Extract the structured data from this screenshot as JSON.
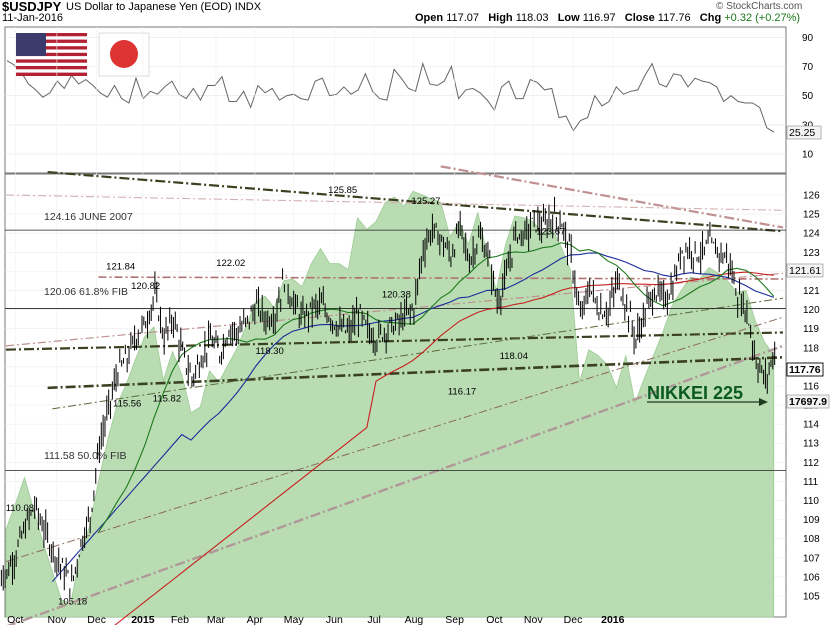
{
  "header": {
    "symbol": "$USDJPY",
    "description": "US Dollar to Japanese Yen (EOD)",
    "exchange": "INDX",
    "date": "11-Jan-2016",
    "open_label": "Open",
    "open": "117.07",
    "high_label": "High",
    "high": "118.03",
    "low_label": "Low",
    "low": "116.97",
    "close_label": "Close",
    "close": "117.76",
    "chg_label": "Chg",
    "chg": "+0.32 (+0.27%)",
    "watermark": "© StockCharts.com"
  },
  "colors": {
    "price": "#000000",
    "nikkei_fill": "#b9dcb3",
    "nikkei_line": "#9ccc94",
    "ma_green": "#1d7a1d",
    "ma_blue": "#1a2a9a",
    "ma_red": "#c81e1e",
    "trend_dark": "#3a4020",
    "trend_pink": "#c09090",
    "rsi_line": "#666666"
  },
  "chart_data": [
    {
      "type": "line",
      "name": "rsi-indicator",
      "ylim": [
        0,
        100
      ],
      "yticks": [
        10,
        30,
        50,
        70,
        90
      ],
      "last_value": "25.25",
      "values": [
        74,
        71,
        66,
        58,
        54,
        49,
        52,
        60,
        55,
        64,
        58,
        61,
        57,
        52,
        49,
        57,
        48,
        45,
        62,
        48,
        53,
        51,
        56,
        60,
        51,
        48,
        55,
        47,
        57,
        57,
        63,
        46,
        46,
        53,
        42,
        57,
        52,
        55,
        47,
        50,
        51,
        48,
        47,
        60,
        62,
        50,
        51,
        56,
        51,
        54,
        65,
        53,
        48,
        47,
        68,
        62,
        55,
        53,
        72,
        58,
        57,
        60,
        70,
        48,
        54,
        55,
        52,
        47,
        40,
        56,
        60,
        48,
        48,
        61,
        59,
        54,
        55,
        35,
        36,
        26,
        33,
        35,
        50,
        43,
        46,
        56,
        51,
        53,
        54,
        64,
        72,
        58,
        56,
        65,
        64,
        56,
        62,
        60,
        59,
        56,
        46,
        50,
        46,
        45,
        45,
        42,
        28,
        25
      ]
    },
    {
      "type": "line",
      "name": "price",
      "ylim": [
        104.5,
        127
      ],
      "yticks": [
        105,
        106,
        107,
        108,
        109,
        110,
        111,
        112,
        113,
        114,
        115,
        116,
        117,
        118,
        119,
        120,
        121,
        122,
        123,
        124,
        125,
        126
      ],
      "x_labels": [
        "Oct",
        "Nov",
        "Dec",
        "2015",
        "Feb",
        "Mar",
        "Apr",
        "May",
        "Jun",
        "Jul",
        "Aug",
        "Sep",
        "Oct",
        "Nov",
        "Dec",
        "2016"
      ],
      "x_label_weeks": [
        1,
        5.5,
        9.8,
        14.8,
        18.8,
        22.7,
        26.9,
        31.1,
        35.5,
        39.8,
        44.1,
        48.5,
        52.8,
        57,
        61.3,
        65.6
      ],
      "close": [
        106.2,
        107.3,
        108.6,
        109.7,
        108.5,
        107.4,
        106.4,
        105.6,
        107.8,
        109.2,
        112.9,
        114.8,
        116.8,
        117.4,
        118.7,
        119.3,
        120.8,
        118.5,
        119.6,
        117.6,
        116.4,
        117.5,
        118.4,
        117.7,
        119.0,
        118.8,
        119.4,
        120.2,
        119.5,
        119.8,
        121.6,
        120.3,
        119.5,
        120.1,
        120.2,
        119.6,
        119.0,
        118.8,
        119.8,
        118.9,
        118.5,
        119.0,
        119.2,
        119.6,
        120.1,
        123.2,
        124.2,
        123.6,
        122.8,
        124.3,
        122.5,
        123.8,
        122.9,
        120.4,
        121.7,
        124.0,
        123.9,
        124.6,
        124.3,
        124.9,
        124.5,
        122.8,
        119.5,
        121.2,
        120.0,
        119.9,
        121.5,
        120.2,
        118.4,
        119.9,
        121.0,
        120.5,
        121.2,
        123.2,
        123.1,
        122.9,
        123.4,
        123.0,
        122.6,
        120.7,
        119.9,
        117.3,
        116.3,
        117.8
      ],
      "high_low_note": "weekly closes estimated; daily bars drawn from these",
      "labels": [
        {
          "text": "110.08",
          "x": 1.5,
          "y": 110.08
        },
        {
          "text": "105.18",
          "x": 7.2,
          "y": 105.18
        },
        {
          "text": "121.84",
          "x": 12.4,
          "y": 121.84
        },
        {
          "text": "120.82",
          "x": 15.1,
          "y": 120.82
        },
        {
          "text": "115.56",
          "x": 13.1,
          "y": 115.56
        },
        {
          "text": "115.82",
          "x": 17.4,
          "y": 115.82
        },
        {
          "text": "122.02",
          "x": 24.3,
          "y": 122.02
        },
        {
          "text": "118.30",
          "x": 28.5,
          "y": 118.3
        },
        {
          "text": "125.85",
          "x": 36.4,
          "y": 125.85
        },
        {
          "text": "120.38",
          "x": 42.2,
          "y": 120.38
        },
        {
          "text": "125.27",
          "x": 45.4,
          "y": 125.27
        },
        {
          "text": "116.17",
          "x": 49.3,
          "y": 116.17
        },
        {
          "text": "118.04",
          "x": 54.9,
          "y": 118.04
        },
        {
          "text": "123.67",
          "x": 58.9,
          "y": 123.67
        }
      ]
    },
    {
      "type": "area",
      "name": "NIKKEI 225",
      "label": "NIKKEI 225",
      "last_value": "17697.9",
      "values": [
        108.5,
        109.8,
        111.2,
        109.5,
        107.8,
        106.3,
        104.8,
        104.6,
        107.2,
        108.6,
        111.0,
        113.2,
        115.0,
        116.1,
        117.4,
        118.6,
        119.1,
        116.3,
        117.8,
        116.6,
        114.6,
        114.9,
        116.8,
        116.2,
        117.1,
        118.0,
        119.2,
        120.4,
        120.7,
        120.1,
        121.5,
        121.6,
        121.2,
        122.4,
        123.2,
        122.4,
        122.4,
        122.1,
        124.8,
        124.2,
        124.6,
        125.6,
        125.9,
        125.4,
        126.2,
        126.0,
        125.8,
        125.6,
        123.8,
        124.6,
        123.4,
        125.1,
        122.9,
        121.0,
        123.4,
        124.9,
        124.8,
        124.6,
        124.0,
        124.3,
        123.3,
        122.1,
        116.2,
        117.9,
        117.6,
        117.1,
        115.9,
        117.6,
        115.1,
        116.4,
        117.6,
        118.8,
        120.2,
        121.0,
        121.7,
        121.6,
        122.2,
        121.9,
        121.5,
        120.9,
        121.0,
        119.4,
        118.3,
        117.6
      ]
    }
  ],
  "annotations": {
    "fib1": "124.16  JUNE 2007",
    "fib2": "120.06  61.8% FIB",
    "fib3": "111.58  50.0% FIB",
    "nikkei_label": "NIKKEI 225",
    "price_last": "117.76",
    "ma_last": "121.61",
    "nikkei_last": "17697.9"
  },
  "flags": {
    "us_flag": "us-flag-icon",
    "japan_flag": "japan-flag-icon"
  }
}
